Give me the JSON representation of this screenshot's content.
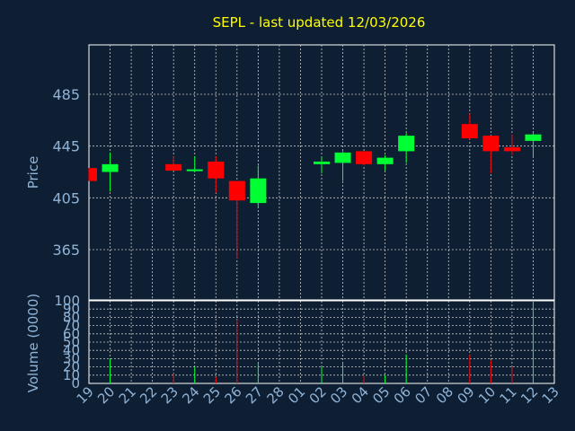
{
  "chart_data": {
    "type": "candlestick",
    "title": "SEPL - last updated 12/03/2026",
    "xlabel": "Day",
    "price_ylabel": "Price",
    "volume_ylabel": "Volume (0000)",
    "price_ticks": [
      365,
      405,
      445,
      485
    ],
    "volume_ticks": [
      0,
      10,
      20,
      30,
      40,
      50,
      60,
      70,
      80,
      90,
      100
    ],
    "volume_ylim": [
      0,
      100
    ],
    "grid": true,
    "x_tick_labels": [
      "19",
      "20",
      "21",
      "22",
      "23",
      "24",
      "25",
      "26",
      "27",
      "28",
      "01",
      "02",
      "03",
      "04",
      "05",
      "06",
      "07",
      "08",
      "09",
      "10",
      "11",
      "12",
      "13"
    ],
    "up_color": "#00ff33",
    "down_color": "#ff0000",
    "candles": [
      {
        "day": "19",
        "open": 428,
        "high": 428,
        "low": 418,
        "close": 418,
        "volume": 0
      },
      {
        "day": "20",
        "open": 425,
        "high": 440,
        "low": 410,
        "close": 431,
        "volume": 30
      },
      {
        "day": "23",
        "open": 431,
        "high": 437,
        "low": 426,
        "close": 426,
        "volume": 12
      },
      {
        "day": "24",
        "open": 426,
        "high": 437,
        "low": 425,
        "close": 427,
        "volume": 20
      },
      {
        "day": "25",
        "open": 433,
        "high": 437,
        "low": 409,
        "close": 420,
        "volume": 8
      },
      {
        "day": "26",
        "open": 418,
        "high": 418,
        "low": 358,
        "close": 403,
        "volume": 77
      },
      {
        "day": "27",
        "open": 401,
        "high": 430,
        "low": 397,
        "close": 420,
        "volume": 24
      },
      {
        "day": "02",
        "open": 431,
        "high": 437,
        "low": 424,
        "close": 433,
        "volume": 20
      },
      {
        "day": "03",
        "open": 432,
        "high": 441,
        "low": 418,
        "close": 440,
        "volume": 24
      },
      {
        "day": "04",
        "open": 441,
        "high": 441,
        "low": 430,
        "close": 431,
        "volume": 9
      },
      {
        "day": "05",
        "open": 431,
        "high": 438,
        "low": 426,
        "close": 436,
        "volume": 10
      },
      {
        "day": "06",
        "open": 441,
        "high": 455,
        "low": 432,
        "close": 453,
        "volume": 35
      },
      {
        "day": "09",
        "open": 462,
        "high": 470,
        "low": 450,
        "close": 451,
        "volume": 35
      },
      {
        "day": "10",
        "open": 453,
        "high": 453,
        "low": 424,
        "close": 441,
        "volume": 28
      },
      {
        "day": "11",
        "open": 444,
        "high": 454,
        "low": 438,
        "close": 441,
        "volume": 20
      },
      {
        "day": "12",
        "open": 449,
        "high": 455,
        "low": 437,
        "close": 454,
        "volume": 100
      }
    ]
  }
}
